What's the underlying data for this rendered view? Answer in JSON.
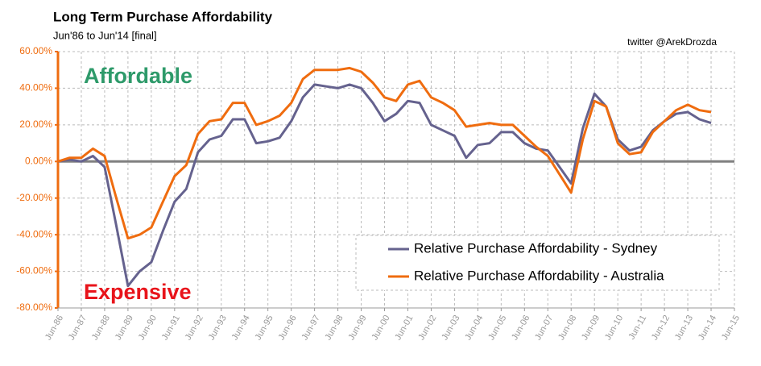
{
  "chart_data": {
    "type": "line",
    "title": "Long Term Purchase Affordability",
    "subtitle": "Jun'86 to Jun'14 [final]",
    "credit": "twitter @ArekDrozda",
    "annotations": [
      "Affordable",
      "Expensive"
    ],
    "categories": [
      "Jun-86",
      null,
      "Jun-87",
      null,
      "Jun-88",
      null,
      "Jun-89",
      null,
      "Jun-90",
      null,
      "Jun-91",
      null,
      "Jun-92",
      null,
      "Jun-93",
      null,
      "Jun-94",
      null,
      "Jun-95",
      null,
      "Jun-96",
      null,
      "Jun-97",
      null,
      "Jun-98",
      null,
      "Jun-99",
      null,
      "Jun-00",
      null,
      "Jun-01",
      null,
      "Jun-02",
      null,
      "Jun-03",
      null,
      "Jun-04",
      null,
      "Jun-05",
      null,
      "Jun-06",
      null,
      "Jun-07",
      null,
      "Jun-08",
      null,
      "Jun-09",
      null,
      "Jun-10",
      null,
      "Jun-11",
      null,
      "Jun-12",
      null,
      "Jun-13",
      null,
      "Jun-14",
      null,
      "Jun-15"
    ],
    "series": [
      {
        "name": "Relative Purchase Affordability - Sydney",
        "color": "#65628e",
        "values": [
          0,
          1,
          0,
          3,
          -3,
          -35,
          -68,
          -60,
          -55,
          -38,
          -22,
          -15,
          5,
          12,
          14,
          23,
          23,
          10,
          11,
          13,
          22,
          35,
          42,
          41,
          40,
          42,
          40,
          32,
          22,
          26,
          33,
          32,
          20,
          17,
          14,
          2,
          9,
          10,
          16,
          16,
          10,
          7,
          6,
          -3,
          -12,
          18,
          37,
          30,
          12,
          6,
          8,
          17,
          22,
          26,
          27,
          23,
          21,
          null,
          null
        ]
      },
      {
        "name": "Relative Purchase Affordability - Australia",
        "color": "#ef6c0f",
        "values": [
          0,
          2,
          2,
          7,
          3,
          -20,
          -42,
          -40,
          -36,
          -22,
          -8,
          -2,
          15,
          22,
          23,
          32,
          32,
          20,
          22,
          25,
          32,
          45,
          50,
          50,
          50,
          51,
          49,
          43,
          35,
          33,
          42,
          44,
          35,
          32,
          28,
          19,
          20,
          21,
          20,
          20,
          14,
          8,
          3,
          -7,
          -17,
          12,
          33,
          30,
          10,
          4,
          5,
          16,
          22,
          28,
          31,
          28,
          27,
          null,
          null
        ]
      }
    ],
    "ylim": [
      -80,
      60
    ],
    "yticks": [
      {
        "value": -80,
        "label": "-80.00%"
      },
      {
        "value": -60,
        "label": "-60.00%"
      },
      {
        "value": -40,
        "label": "-40.00%"
      },
      {
        "value": -20,
        "label": "-20.00%"
      },
      {
        "value": 0,
        "label": "0.00%"
      },
      {
        "value": 20,
        "label": "20.00%"
      },
      {
        "value": 40,
        "label": "40.00%"
      },
      {
        "value": 60,
        "label": "60.00%"
      }
    ],
    "grid": true,
    "legend": "lower right"
  }
}
